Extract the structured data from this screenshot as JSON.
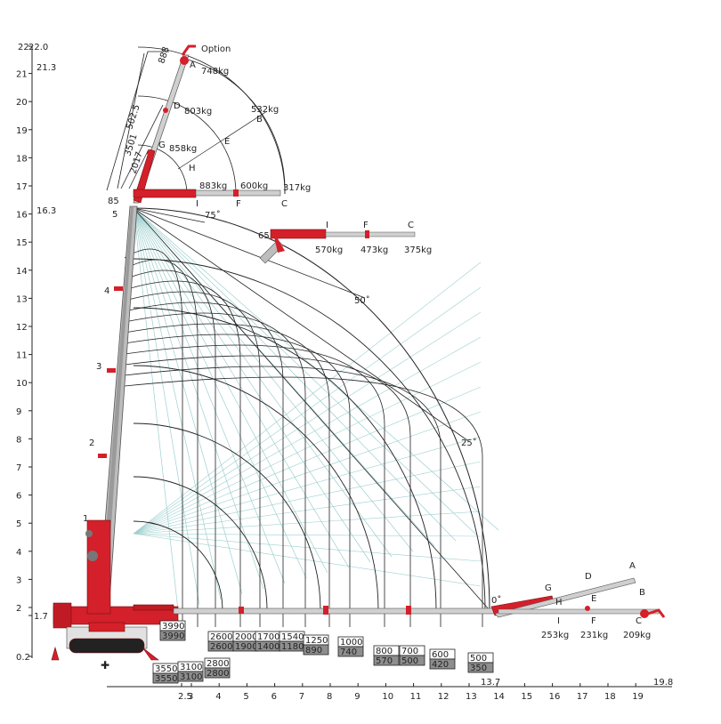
{
  "diagram": {
    "y_axis_ticks": [
      "0.2",
      "1.7",
      "2",
      "3",
      "4",
      "5",
      "6",
      "7",
      "8",
      "9",
      "10",
      "11",
      "12",
      "13",
      "14",
      "15",
      "16",
      "17",
      "18",
      "19",
      "20",
      "21",
      "22"
    ],
    "y_axis_extra": [
      "16.3",
      "21.3",
      "22.0"
    ],
    "x_axis_ticks": [
      "2.5",
      "3",
      "4",
      "5",
      "6",
      "7",
      "8",
      "9",
      "10",
      "11",
      "12",
      "13",
      "14",
      "15",
      "16",
      "17",
      "18",
      "19"
    ],
    "x_axis_extra": [
      "13.7",
      "19.8"
    ],
    "option_label": "Option",
    "jib_top": {
      "letters": {
        "A": "A",
        "B": "B",
        "C": "C",
        "D": "D",
        "E": "E",
        "F": "F",
        "G": "G",
        "H": "H",
        "I": "I"
      },
      "loads": {
        "A": "748kg",
        "B": "532kg",
        "C": "317kg",
        "D": "803kg",
        "F": "600kg",
        "G": "858kg",
        "I": "883kg"
      },
      "dims": [
        "888",
        "502.5",
        "3501",
        "2017"
      ],
      "small": [
        "85",
        "5"
      ]
    },
    "jib_mid": {
      "angle": "65",
      "letters": [
        "I",
        "F",
        "C"
      ],
      "loads": [
        "570kg",
        "473kg",
        "375kg"
      ]
    },
    "jib_low": {
      "letters": [
        "A",
        "B",
        "C",
        "D",
        "E",
        "F",
        "G",
        "H",
        "I"
      ],
      "loads": [
        "253kg",
        "231kg",
        "209kg"
      ],
      "angle": "0˚"
    },
    "angles": [
      "75˚",
      "50˚",
      "25˚"
    ],
    "boom_sections": [
      "1",
      "2",
      "3",
      "4",
      "5"
    ],
    "capacity_boxes": [
      {
        "top": "3990",
        "bottom": "3990"
      },
      {
        "top": "3550",
        "bottom": "3550"
      },
      {
        "top": "3100",
        "bottom": "3100"
      },
      {
        "top": "2800",
        "bottom": "2800"
      },
      {
        "top": "2600",
        "bottom": "2600"
      },
      {
        "top": "2000",
        "bottom": "1900"
      },
      {
        "top": "1700",
        "bottom": "1400"
      },
      {
        "top": "1540",
        "bottom": "1180"
      },
      {
        "top": "1250",
        "bottom": "890"
      },
      {
        "top": "1000",
        "bottom": "740"
      },
      {
        "top": "800",
        "bottom": "570"
      },
      {
        "top": "700",
        "bottom": "500"
      },
      {
        "top": "600",
        "bottom": "420"
      },
      {
        "top": "500",
        "bottom": "350"
      }
    ],
    "colors": {
      "crane_red": "#d4202a",
      "line": "#222222",
      "guide": "#9ecfcf",
      "box_gray": "#8e8e8e"
    }
  }
}
